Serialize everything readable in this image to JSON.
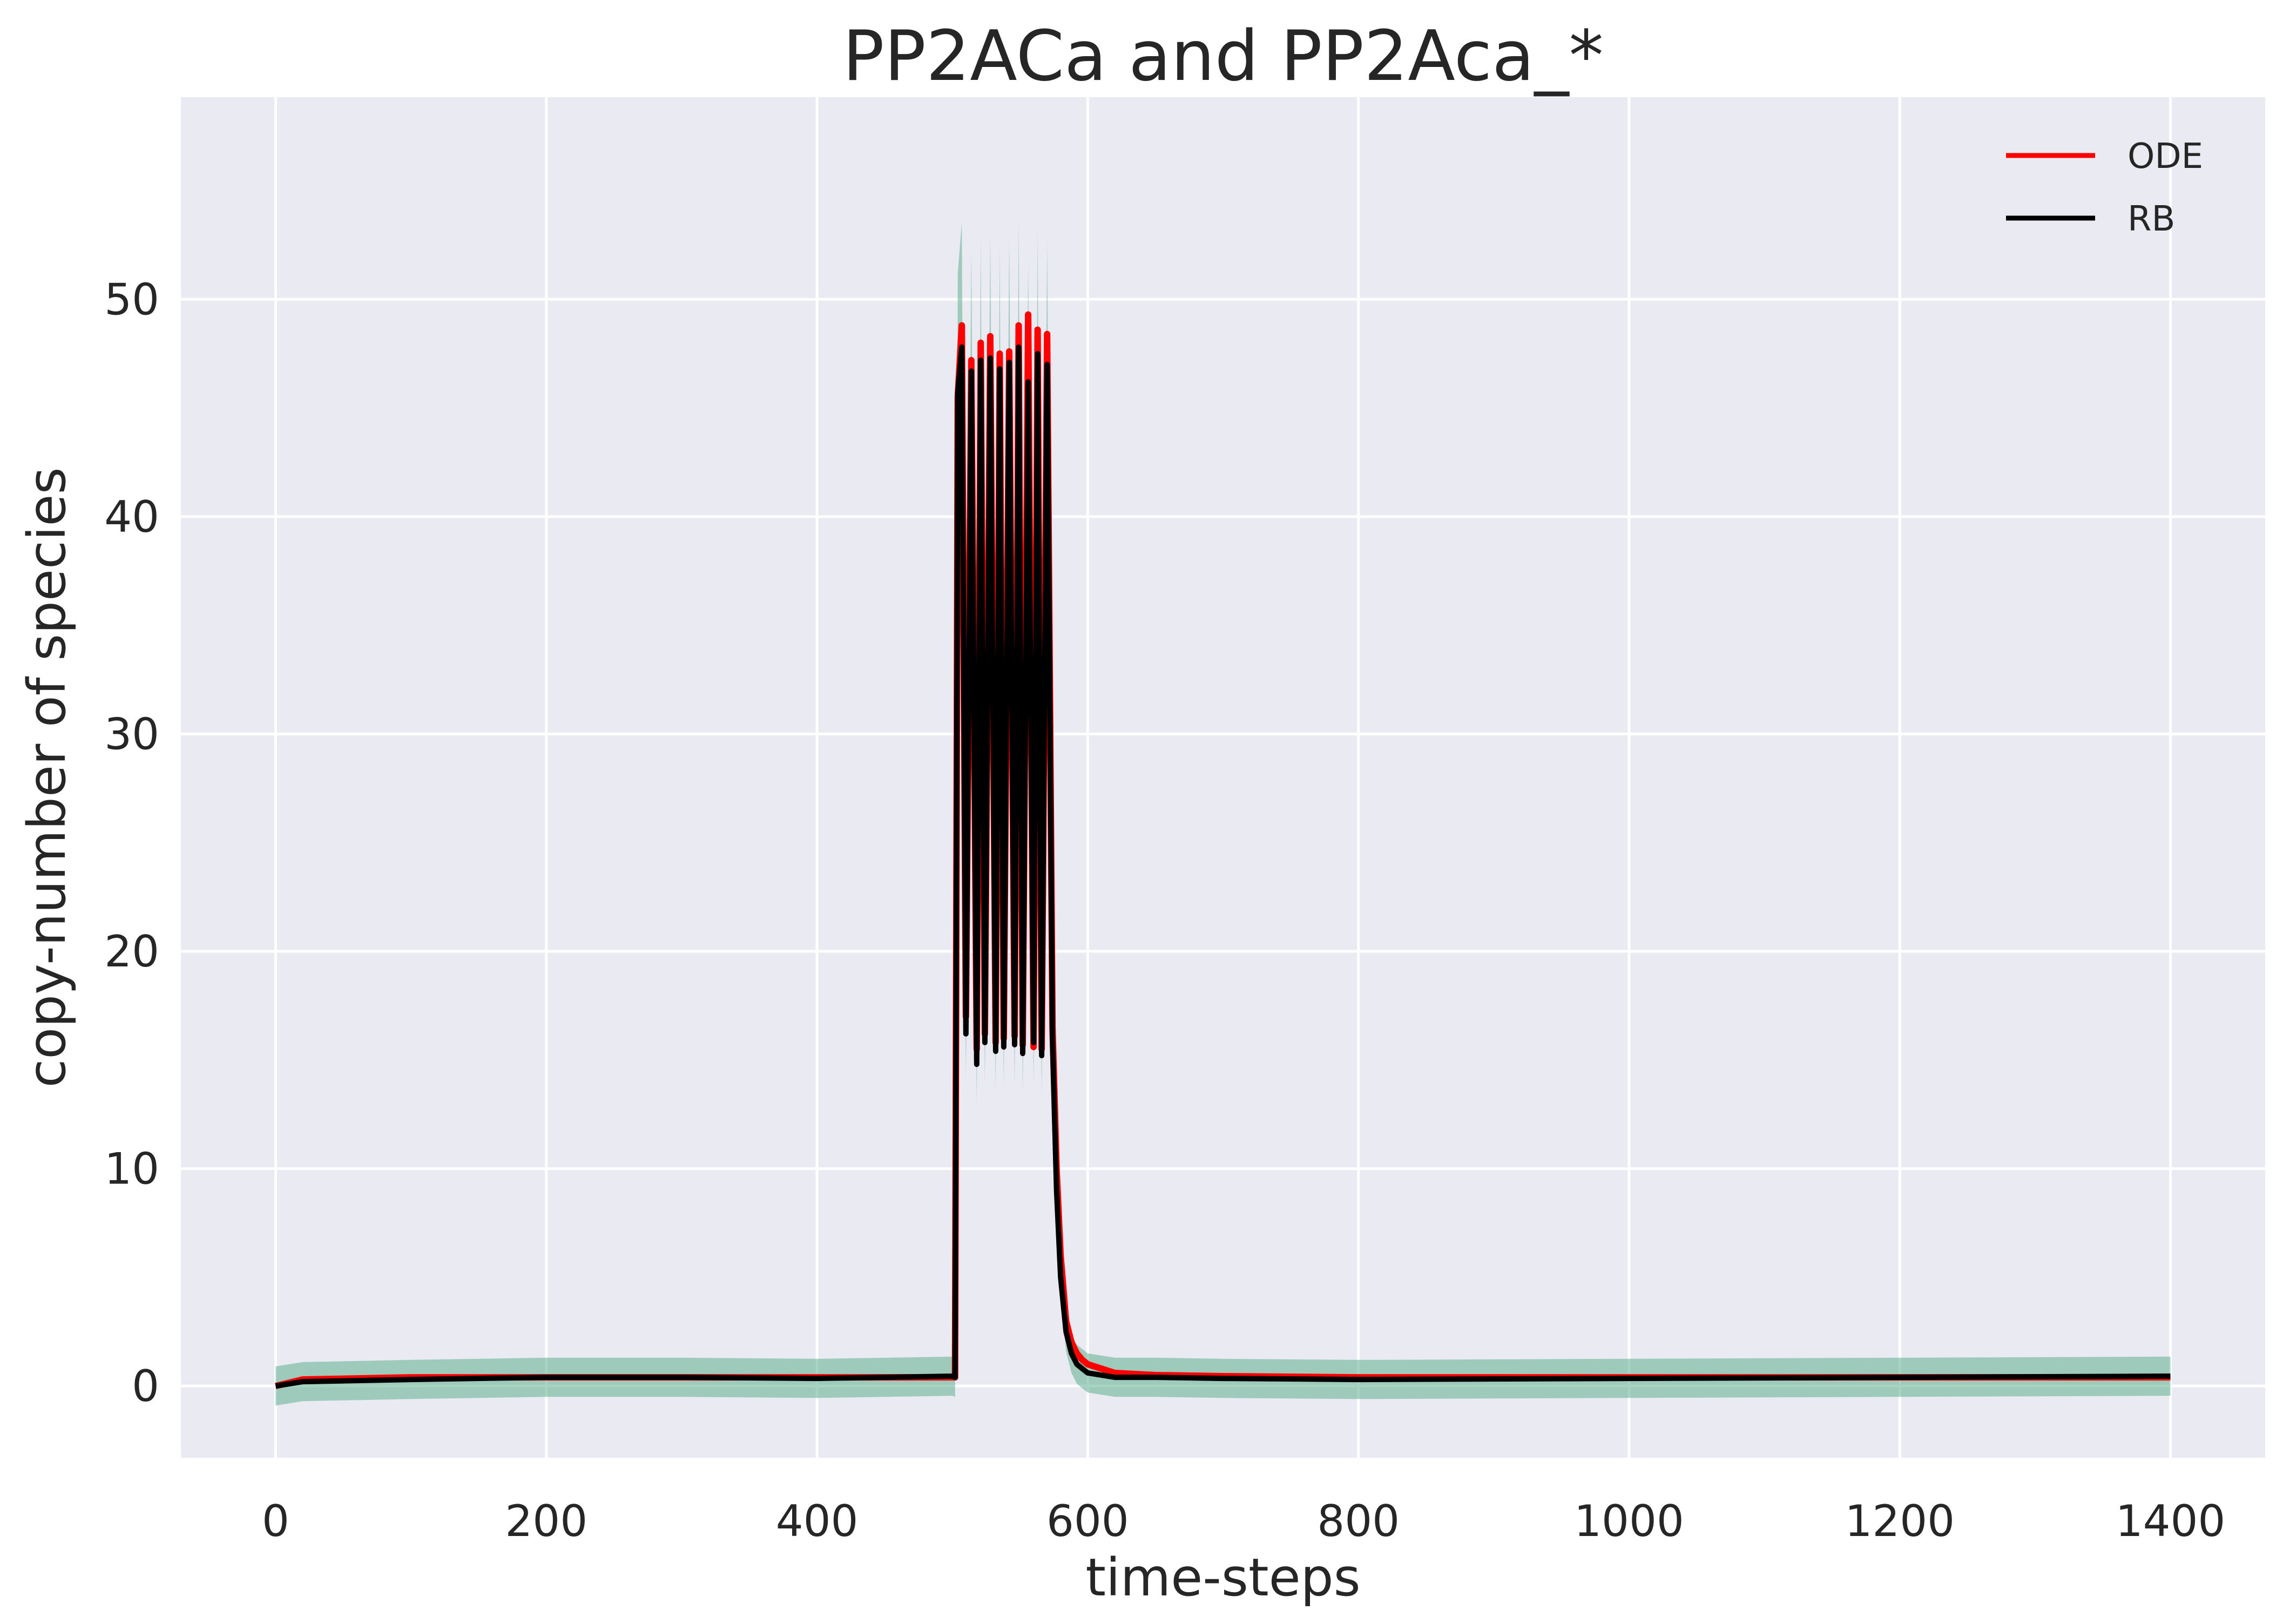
{
  "chart_data": {
    "type": "line",
    "title": "PP2ACa and PP2Aca_*",
    "xlabel": "time-steps",
    "ylabel": "copy-number of species",
    "xlim": [
      -70,
      1470
    ],
    "ylim": [
      -3.3,
      59.3
    ],
    "xticks": [
      0,
      200,
      400,
      600,
      800,
      1000,
      1200,
      1400
    ],
    "yticks": [
      0,
      10,
      20,
      30,
      40,
      50
    ],
    "grid": true,
    "legend_position": "top-right",
    "background_color": "#eaeaf2",
    "series": [
      {
        "name": "ODE",
        "color": "#ff0000",
        "x": [
          0,
          20,
          100,
          200,
          300,
          400,
          500,
          502,
          504,
          507,
          510,
          514,
          518,
          521,
          524,
          528,
          532,
          535,
          538,
          542,
          546,
          549,
          552,
          556,
          560,
          563,
          566,
          570,
          574,
          577,
          580,
          584,
          588,
          592,
          596,
          600,
          610,
          620,
          650,
          700,
          800,
          1000,
          1200,
          1400
        ],
        "y": [
          0,
          0.3,
          0.4,
          0.4,
          0.4,
          0.4,
          0.4,
          0.4,
          45.5,
          48.8,
          17,
          47.2,
          15.5,
          48,
          16.2,
          48.3,
          15.8,
          47.5,
          16,
          47.6,
          16.1,
          48.8,
          15.7,
          49.3,
          15.6,
          48.6,
          15.5,
          48.4,
          16.5,
          10,
          6,
          3,
          2,
          1.5,
          1.2,
          1,
          0.8,
          0.6,
          0.5,
          0.45,
          0.4,
          0.4,
          0.4,
          0.4
        ]
      },
      {
        "name": "RB",
        "color": "#000000",
        "x": [
          0,
          20,
          100,
          200,
          300,
          400,
          500,
          502,
          504,
          507,
          510,
          514,
          518,
          521,
          524,
          528,
          532,
          535,
          538,
          542,
          546,
          549,
          552,
          556,
          560,
          563,
          566,
          570,
          574,
          577,
          580,
          584,
          588,
          592,
          596,
          600,
          610,
          620,
          650,
          700,
          800,
          1000,
          1200,
          1400
        ],
        "y": [
          0,
          0.2,
          0.3,
          0.4,
          0.4,
          0.35,
          0.45,
          0.4,
          45.7,
          47.8,
          16.2,
          46.7,
          14.8,
          47.2,
          15.8,
          47.3,
          15.4,
          46.8,
          15.6,
          47.1,
          15.7,
          47.8,
          15.3,
          46.2,
          15.8,
          47.5,
          15.2,
          47,
          15.9,
          9,
          5,
          2.5,
          1.5,
          1,
          0.8,
          0.6,
          0.5,
          0.4,
          0.4,
          0.35,
          0.3,
          0.35,
          0.4,
          0.45
        ]
      }
    ],
    "shaded_band_color": "#5fae8f"
  }
}
